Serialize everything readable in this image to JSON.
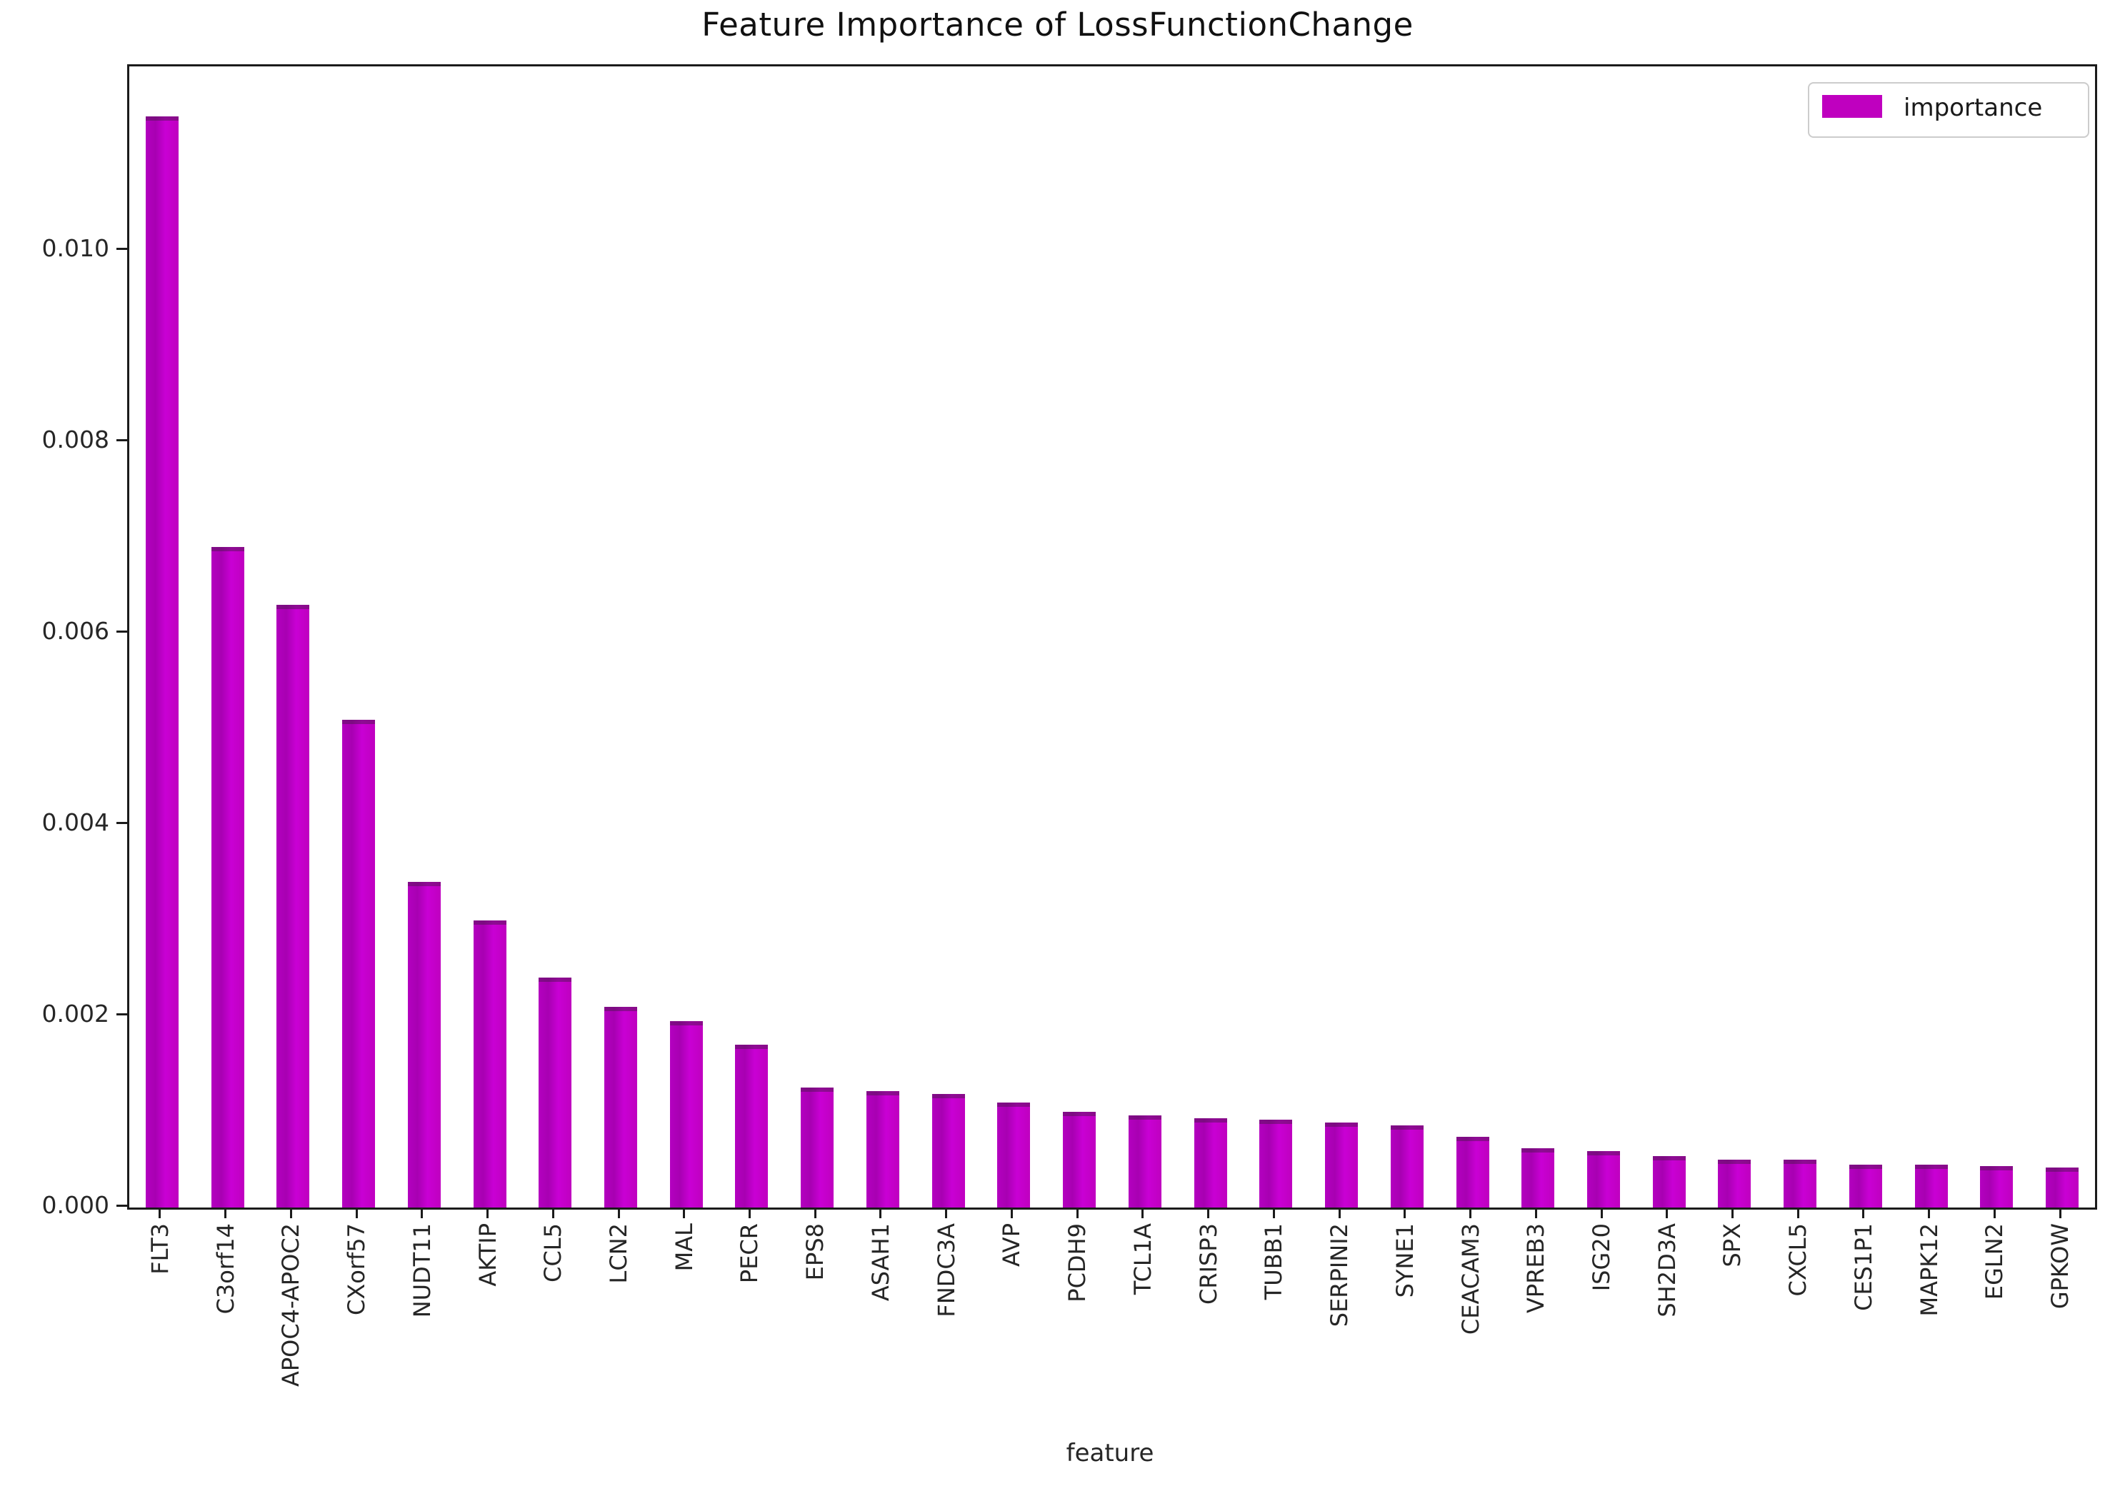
{
  "chart_data": {
    "type": "bar",
    "title": "Feature Importance of LossFunctionChange",
    "xlabel": "feature",
    "ylabel": "",
    "legend": [
      "importance"
    ],
    "legend_position": "upper right",
    "grid": false,
    "bar_color": "#bf00bf",
    "ylim": [
      0,
      0.011925
    ],
    "ytick_labels": [
      "0.000",
      "0.002",
      "0.004",
      "0.006",
      "0.008",
      "0.010"
    ],
    "ytick_values": [
      0.0,
      0.002,
      0.004,
      0.006,
      0.008,
      0.01
    ],
    "xtick_rotation_deg": 90,
    "categories": [
      "FLT3",
      "C3orf14",
      "APOC4-APOC2",
      "CXorf57",
      "NUDT11",
      "AKTIP",
      "CCL5",
      "LCN2",
      "MAL",
      "PECR",
      "EPS8",
      "ASAH1",
      "FNDC3A",
      "AVP",
      "PCDH9",
      "TCL1A",
      "CRISP3",
      "TUBB1",
      "SERPINI2",
      "SYNE1",
      "CEACAM3",
      "VPREB3",
      "ISG20",
      "SH2D3A",
      "SPX",
      "CXCL5",
      "CES1P1",
      "MAPK12",
      "EGLN2",
      "GPKOW"
    ],
    "values": [
      0.0114,
      0.0069,
      0.0063,
      0.0051,
      0.0034,
      0.003,
      0.0024,
      0.0021,
      0.00195,
      0.0017,
      0.00125,
      0.00122,
      0.00119,
      0.0011,
      0.001,
      0.00096,
      0.00093,
      0.00092,
      0.00089,
      0.00086,
      0.00074,
      0.00062,
      0.00059,
      0.00054,
      0.0005,
      0.0005,
      0.00045,
      0.00045,
      0.00043,
      0.00042
    ]
  }
}
